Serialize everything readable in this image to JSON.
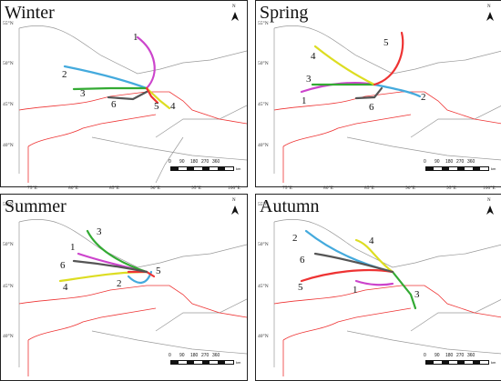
{
  "panels": [
    {
      "title": "Winter",
      "track_labels": [
        "1",
        "2",
        "3",
        "4",
        "5",
        "6"
      ]
    },
    {
      "title": "Spring",
      "track_labels": [
        "1",
        "2",
        "3",
        "4",
        "5",
        "6"
      ]
    },
    {
      "title": "Summer",
      "track_labels": [
        "1",
        "2",
        "3",
        "4",
        "5",
        "6"
      ]
    },
    {
      "title": "Autumn",
      "track_labels": [
        "1",
        "2",
        "3",
        "4",
        "5",
        "6"
      ]
    }
  ],
  "axes": {
    "latitudes": [
      "55°N",
      "50°N",
      "45°N",
      "40°N"
    ],
    "longitudes": [
      "75°E",
      "80°E",
      "85°E",
      "90°E",
      "95°E",
      "100°E"
    ]
  },
  "scale_bar": {
    "ticks": [
      "0",
      "90",
      "180",
      "270",
      "360"
    ],
    "unit": "km"
  },
  "north_label": "N",
  "track_colors": {
    "1": "#cc44cc",
    "2": "#44aadd",
    "3": "#33aa33",
    "4": "#dddd22",
    "5": "#ee3333",
    "6": "#555555"
  }
}
